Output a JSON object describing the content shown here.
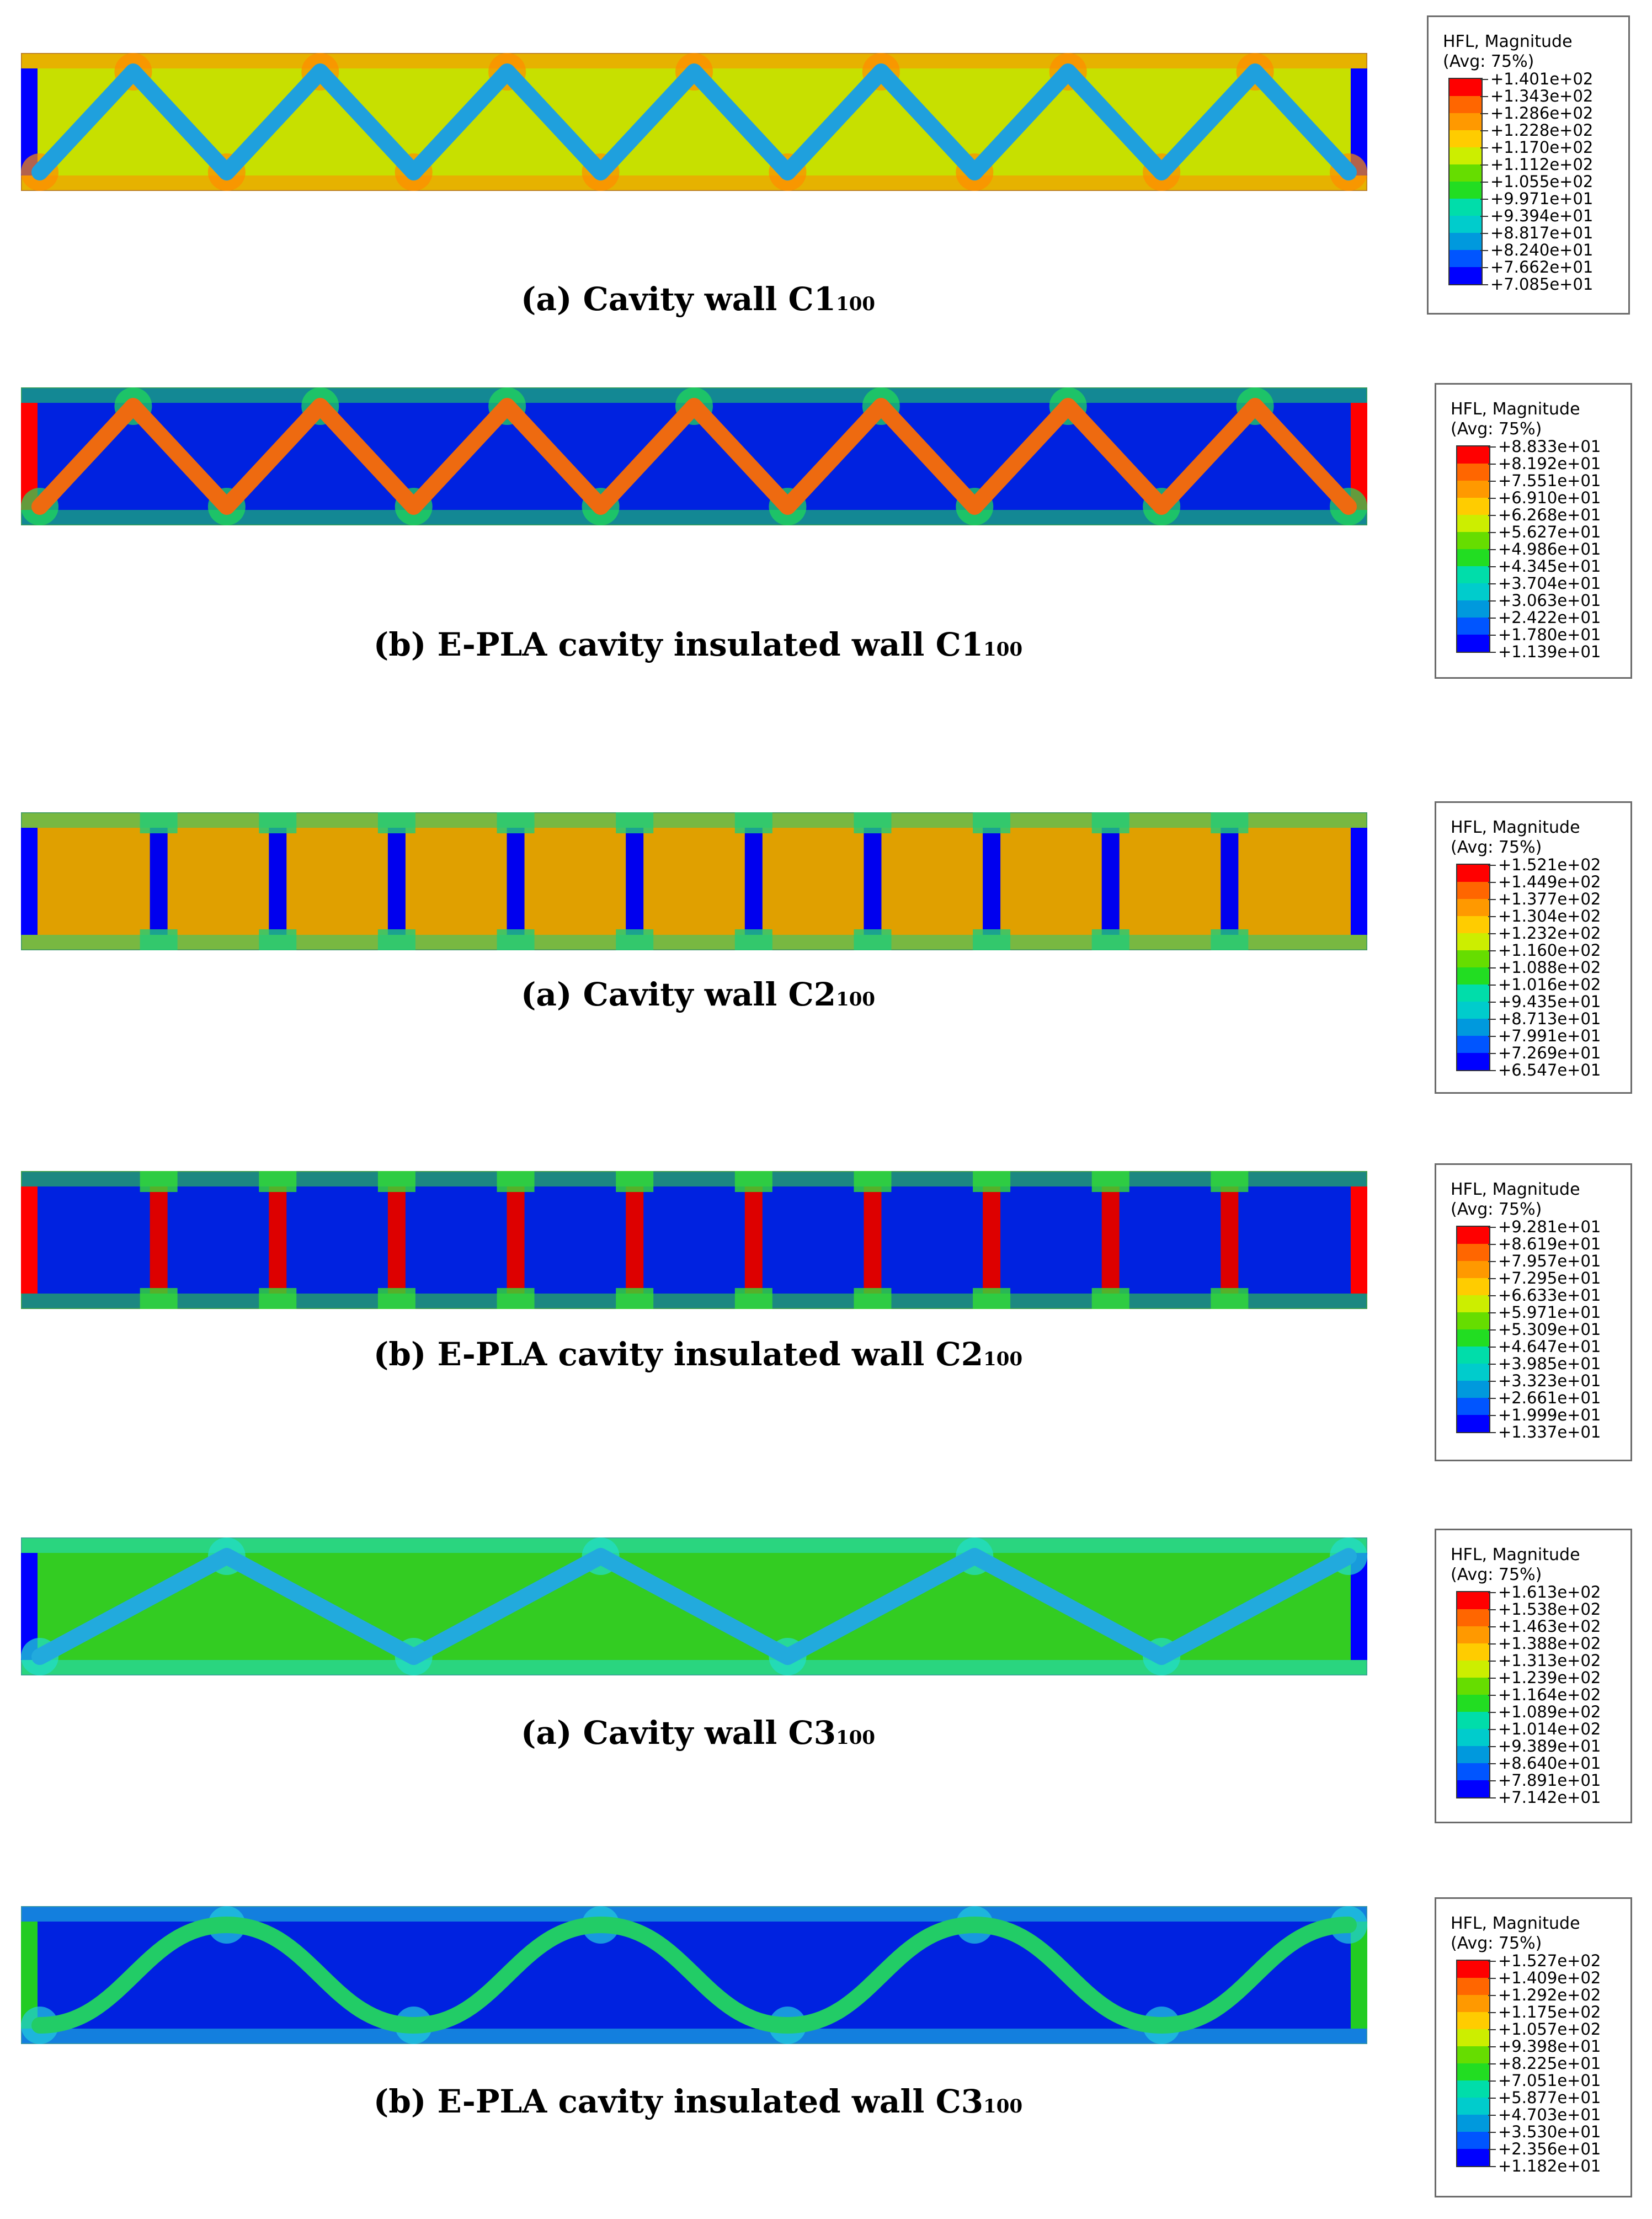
{
  "palette": [
    "#ff0000",
    "#ff6600",
    "#ff9900",
    "#ffcc00",
    "#ccee00",
    "#66dd00",
    "#22dd22",
    "#00ddaa",
    "#00cccc",
    "#0099dd",
    "#0055ff",
    "#0000ff"
  ],
  "panels": [
    {
      "caption_main": "(a) Cavity wall C1",
      "caption_sub": "100",
      "legend_title": "HFL, Magnitude",
      "legend_avg": "(Avg: 75%)",
      "legend_values": [
        "+1.401e+02",
        "+1.343e+02",
        "+1.286e+02",
        "+1.228e+02",
        "+1.170e+02",
        "+1.112e+02",
        "+1.055e+02",
        "+9.971e+01",
        "+9.394e+01",
        "+8.817e+01",
        "+8.240e+01",
        "+7.662e+01",
        "+7.085e+01"
      ],
      "pattern": "zigzag",
      "count": 14,
      "bg_color": "#c7e000",
      "web_color": "#1fa0dd",
      "end_color": "#0000ff",
      "node_color": "#ff8c00"
    },
    {
      "caption_main": "(b) E-PLA cavity insulated wall C1",
      "caption_sub": "100",
      "legend_title": "HFL, Magnitude",
      "legend_avg": "(Avg: 75%)",
      "legend_values": [
        "+8.833e+01",
        "+8.192e+01",
        "+7.551e+01",
        "+6.910e+01",
        "+6.268e+01",
        "+5.627e+01",
        "+4.986e+01",
        "+4.345e+01",
        "+3.704e+01",
        "+3.063e+01",
        "+2.422e+01",
        "+1.780e+01",
        "+1.139e+01"
      ],
      "pattern": "zigzag",
      "count": 14,
      "bg_color": "#0022e0",
      "web_color": "#ee6a10",
      "end_color": "#ff0000",
      "node_color": "#22dd55"
    },
    {
      "caption_main": "(a) Cavity wall C2",
      "caption_sub": "100",
      "legend_title": "HFL, Magnitude",
      "legend_avg": "(Avg: 75%)",
      "legend_values": [
        "+1.521e+02",
        "+1.449e+02",
        "+1.377e+02",
        "+1.304e+02",
        "+1.232e+02",
        "+1.160e+02",
        "+1.088e+02",
        "+1.016e+02",
        "+9.435e+01",
        "+8.713e+01",
        "+7.991e+01",
        "+7.269e+01",
        "+6.547e+01"
      ],
      "pattern": "vertical",
      "count": 10,
      "bg_color": "#e0a000",
      "web_color": "#0000ee",
      "end_color": "#0000ff",
      "node_color": "#22cc77"
    },
    {
      "caption_main": "(b) E-PLA cavity insulated wall C2",
      "caption_sub": "100",
      "legend_title": "HFL, Magnitude",
      "legend_avg": "(Avg: 75%)",
      "legend_values": [
        "+9.281e+01",
        "+8.619e+01",
        "+7.957e+01",
        "+7.295e+01",
        "+6.633e+01",
        "+5.971e+01",
        "+5.309e+01",
        "+4.647e+01",
        "+3.985e+01",
        "+3.323e+01",
        "+2.661e+01",
        "+1.999e+01",
        "+1.337e+01"
      ],
      "pattern": "vertical",
      "count": 10,
      "bg_color": "#0022e0",
      "web_color": "#dd0000",
      "end_color": "#ff0000",
      "node_color": "#33dd33"
    },
    {
      "caption_main": "(a) Cavity wall C3",
      "caption_sub": "100",
      "legend_title": "HFL, Magnitude",
      "legend_avg": "(Avg: 75%)",
      "legend_values": [
        "+1.613e+02",
        "+1.538e+02",
        "+1.463e+02",
        "+1.388e+02",
        "+1.313e+02",
        "+1.239e+02",
        "+1.164e+02",
        "+1.089e+02",
        "+1.014e+02",
        "+9.389e+01",
        "+8.640e+01",
        "+7.891e+01",
        "+7.142e+01"
      ],
      "pattern": "zigzag",
      "count": 7,
      "bg_color": "#33cc22",
      "web_color": "#22aadd",
      "end_color": "#0000ff",
      "node_color": "#22ddcc"
    },
    {
      "caption_main": "(b) E-PLA cavity insulated wall C3",
      "caption_sub": "100",
      "legend_title": "HFL, Magnitude",
      "legend_avg": "(Avg: 75%)",
      "legend_values": [
        "+1.527e+02",
        "+1.409e+02",
        "+1.292e+02",
        "+1.175e+02",
        "+1.057e+02",
        "+9.398e+01",
        "+8.225e+01",
        "+7.051e+01",
        "+5.877e+01",
        "+4.703e+01",
        "+3.530e+01",
        "+2.356e+01",
        "+1.182e+01"
      ],
      "pattern": "wave",
      "count": 7,
      "bg_color": "#0022e0",
      "web_color": "#22cc66",
      "end_color": "#22cc22",
      "node_color": "#22ccdd"
    }
  ]
}
